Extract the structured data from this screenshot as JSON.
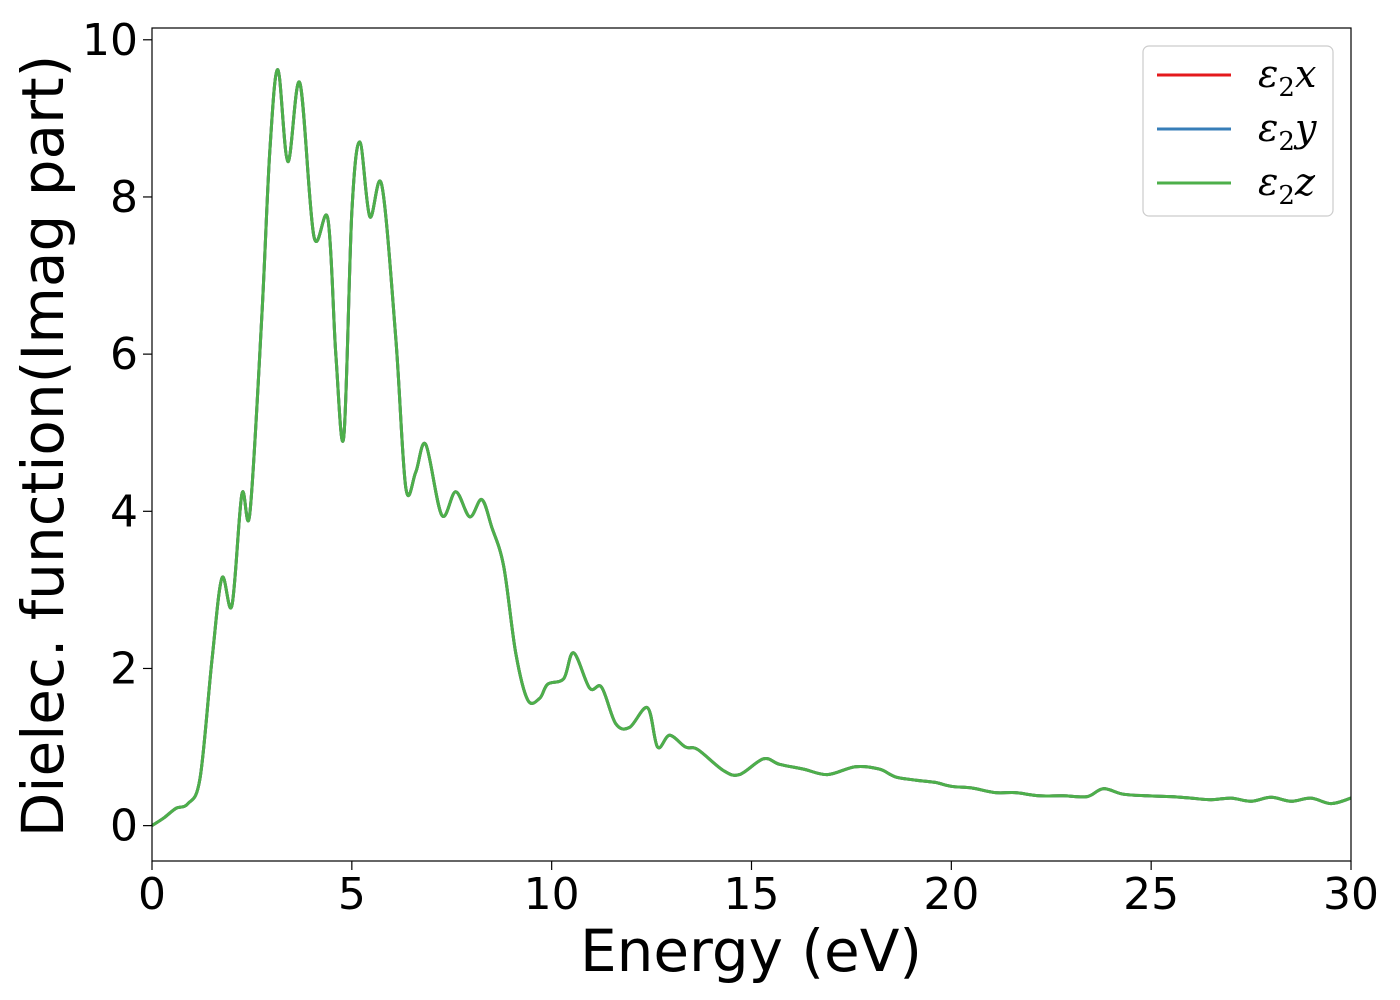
{
  "chart_data": {
    "type": "line",
    "title": "",
    "xlabel": "Energy (eV)",
    "ylabel": "Dielec. function(Imag part)",
    "xlim": [
      0,
      30
    ],
    "ylim": [
      -0.45,
      10.15
    ],
    "xticks": [
      0,
      5,
      10,
      15,
      20,
      25,
      30
    ],
    "yticks": [
      0,
      2,
      4,
      6,
      8,
      10
    ],
    "grid": false,
    "legend_position": "top-right",
    "x": [
      0,
      0.3,
      0.6,
      0.9,
      1.2,
      1.5,
      1.75,
      2.0,
      2.25,
      2.45,
      2.75,
      2.95,
      3.15,
      3.4,
      3.7,
      4.05,
      4.4,
      4.6,
      4.8,
      5.0,
      5.2,
      5.45,
      5.75,
      6.1,
      6.35,
      6.6,
      6.85,
      7.25,
      7.6,
      7.95,
      8.25,
      8.5,
      8.8,
      9.1,
      9.4,
      9.7,
      9.9,
      10.3,
      10.55,
      10.95,
      11.25,
      11.6,
      11.95,
      12.4,
      12.65,
      12.95,
      13.35,
      13.65,
      14.3,
      14.7,
      15.3,
      15.7,
      16.3,
      16.9,
      17.6,
      18.2,
      18.6,
      19.1,
      19.6,
      20.0,
      20.5,
      21.1,
      21.6,
      22.2,
      22.8,
      23.4,
      23.8,
      24.3,
      24.9,
      25.5,
      26.0,
      26.5,
      27.0,
      27.5,
      28.0,
      28.5,
      29.0,
      29.5,
      30.0
    ],
    "series": [
      {
        "name": "ε₂x",
        "color": "#e41a1c",
        "values": [
          0.0,
          0.1,
          0.22,
          0.28,
          0.6,
          2.1,
          3.15,
          2.8,
          4.22,
          3.98,
          6.5,
          8.6,
          9.62,
          8.45,
          9.45,
          7.5,
          7.72,
          6.0,
          4.95,
          7.8,
          8.7,
          7.75,
          8.15,
          6.2,
          4.3,
          4.5,
          4.85,
          3.95,
          4.25,
          3.93,
          4.15,
          3.8,
          3.3,
          2.2,
          1.6,
          1.62,
          1.8,
          1.87,
          2.2,
          1.75,
          1.76,
          1.3,
          1.25,
          1.5,
          1.0,
          1.15,
          1.0,
          0.97,
          0.7,
          0.65,
          0.85,
          0.78,
          0.72,
          0.65,
          0.75,
          0.72,
          0.62,
          0.58,
          0.55,
          0.5,
          0.48,
          0.42,
          0.42,
          0.38,
          0.38,
          0.37,
          0.47,
          0.4,
          0.38,
          0.37,
          0.35,
          0.33,
          0.35,
          0.31,
          0.36,
          0.31,
          0.35,
          0.28,
          0.35
        ]
      },
      {
        "name": "ε₂y",
        "color": "#377eb8",
        "values": [
          0.0,
          0.1,
          0.22,
          0.28,
          0.6,
          2.1,
          3.15,
          2.8,
          4.22,
          3.98,
          6.5,
          8.6,
          9.62,
          8.45,
          9.45,
          7.5,
          7.72,
          6.0,
          4.95,
          7.8,
          8.7,
          7.75,
          8.15,
          6.2,
          4.3,
          4.5,
          4.85,
          3.95,
          4.25,
          3.93,
          4.15,
          3.8,
          3.3,
          2.2,
          1.6,
          1.62,
          1.8,
          1.87,
          2.2,
          1.75,
          1.76,
          1.3,
          1.25,
          1.5,
          1.0,
          1.15,
          1.0,
          0.97,
          0.7,
          0.65,
          0.85,
          0.78,
          0.72,
          0.65,
          0.75,
          0.72,
          0.62,
          0.58,
          0.55,
          0.5,
          0.48,
          0.42,
          0.42,
          0.38,
          0.38,
          0.37,
          0.47,
          0.4,
          0.38,
          0.37,
          0.35,
          0.33,
          0.35,
          0.31,
          0.36,
          0.31,
          0.35,
          0.28,
          0.35
        ]
      },
      {
        "name": "ε₂z",
        "color": "#4daf4a",
        "values": [
          0.0,
          0.1,
          0.22,
          0.28,
          0.6,
          2.1,
          3.15,
          2.8,
          4.22,
          3.98,
          6.5,
          8.6,
          9.62,
          8.45,
          9.45,
          7.5,
          7.72,
          6.0,
          4.95,
          7.8,
          8.7,
          7.75,
          8.15,
          6.2,
          4.3,
          4.5,
          4.85,
          3.95,
          4.25,
          3.93,
          4.15,
          3.8,
          3.3,
          2.2,
          1.6,
          1.62,
          1.8,
          1.87,
          2.2,
          1.75,
          1.76,
          1.3,
          1.25,
          1.5,
          1.0,
          1.15,
          1.0,
          0.97,
          0.7,
          0.65,
          0.85,
          0.78,
          0.72,
          0.65,
          0.75,
          0.72,
          0.62,
          0.58,
          0.55,
          0.5,
          0.48,
          0.42,
          0.42,
          0.38,
          0.38,
          0.37,
          0.47,
          0.4,
          0.38,
          0.37,
          0.35,
          0.33,
          0.35,
          0.31,
          0.36,
          0.31,
          0.35,
          0.28,
          0.35
        ]
      }
    ],
    "legend": [
      {
        "label": "ε",
        "sub": "2",
        "axis": "x"
      },
      {
        "label": "ε",
        "sub": "2",
        "axis": "y"
      },
      {
        "label": "ε",
        "sub": "2",
        "axis": "z"
      }
    ]
  }
}
